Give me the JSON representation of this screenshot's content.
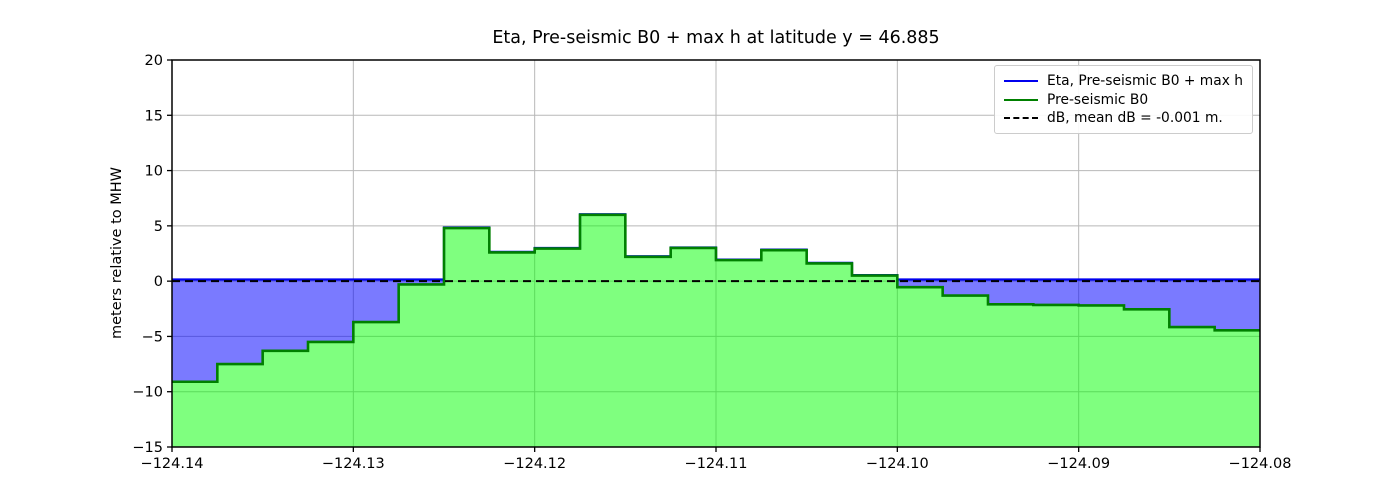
{
  "chart_data": {
    "type": "area",
    "title": "Eta, Pre-seismic B0 + max h at latitude y = 46.885",
    "xlabel": "",
    "ylabel": "meters relative to MHW",
    "xlim": [
      -124.14,
      -124.08
    ],
    "ylim": [
      -15,
      20
    ],
    "grid": true,
    "legend_position": "upper right",
    "xtick_values": [
      -124.14,
      -124.13,
      -124.12,
      -124.11,
      -124.1,
      -124.09,
      -124.08
    ],
    "xtick_labels": [
      "−124.14",
      "−124.13",
      "−124.12",
      "−124.11",
      "−124.10",
      "−124.09",
      "−124.08"
    ],
    "ytick_values": [
      20,
      15,
      10,
      5,
      0,
      -5,
      -10,
      -15
    ],
    "ytick_labels": [
      "20",
      "15",
      "10",
      "5",
      "0",
      "−5",
      "−10",
      "−15"
    ],
    "x_step_edges": [
      -124.14,
      -124.1375,
      -124.135,
      -124.1325,
      -124.13,
      -124.1275,
      -124.125,
      -124.1225,
      -124.12,
      -124.1175,
      -124.115,
      -124.1125,
      -124.11,
      -124.1075,
      -124.105,
      -124.1025,
      -124.1,
      -124.0975,
      -124.095,
      -124.0925,
      -124.09,
      -124.0875,
      -124.085,
      -124.0825,
      -124.08
    ],
    "series": [
      {
        "name": "Eta, Pre-seismic B0 + max h",
        "type": "step-line",
        "color": "#0000ee",
        "dash": false,
        "values": [
          0.15,
          0.15,
          0.15,
          0.15,
          0.15,
          0.15,
          4.85,
          2.65,
          3.0,
          6.05,
          2.25,
          3.05,
          1.95,
          2.85,
          1.65,
          0.55,
          0.15,
          0.15,
          0.15,
          0.15,
          0.15,
          0.15,
          0.15,
          0.15
        ]
      },
      {
        "name": "Pre-seismic B0",
        "type": "step-line",
        "color": "#008000",
        "dash": false,
        "values": [
          -9.1,
          -7.5,
          -6.3,
          -5.5,
          -3.7,
          -0.3,
          4.8,
          2.6,
          2.95,
          6.0,
          2.2,
          3.0,
          1.9,
          2.8,
          1.6,
          0.5,
          -0.55,
          -1.3,
          -2.1,
          -2.15,
          -2.2,
          -2.55,
          -4.15,
          -4.45
        ]
      },
      {
        "name": "dB, mean dB = -0.001 m.",
        "type": "hline",
        "color": "#000000",
        "dash": true,
        "value": -0.001
      }
    ],
    "fills": [
      {
        "name": "water",
        "between": [
          "Eta, Pre-seismic B0 + max h",
          "Pre-seismic B0"
        ],
        "color": "#0000ff",
        "opacity": 0.52
      },
      {
        "name": "land",
        "below": "Pre-seismic B0",
        "color": "#00ff00",
        "opacity": 0.5
      }
    ],
    "grid_color": "#b8b8b8"
  }
}
